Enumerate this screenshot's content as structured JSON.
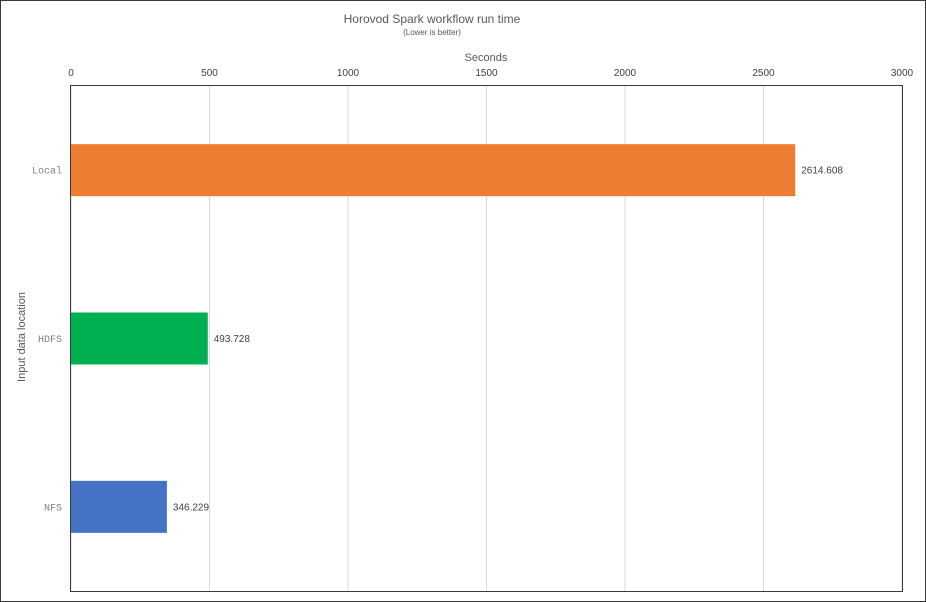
{
  "chart_data": {
    "type": "bar",
    "orientation": "horizontal",
    "title": "Horovod Spark workflow run time",
    "subtitle": "(Lower is better)",
    "xlabel": "Seconds",
    "ylabel": "Input data location",
    "xlim": [
      0,
      3000
    ],
    "x_ticks": [
      "0",
      "500",
      "1000",
      "1500",
      "2000",
      "2500",
      "3000"
    ],
    "x_axis_position": "top",
    "grid": true,
    "categories": [
      "Local",
      "HDFS",
      "NFS"
    ],
    "values": [
      2614.608,
      493.728,
      346.229
    ],
    "value_labels": [
      "2614.608",
      "493.728",
      "346.229"
    ],
    "colors": [
      "#ed7d31",
      "#00b050",
      "#4472c4"
    ]
  }
}
